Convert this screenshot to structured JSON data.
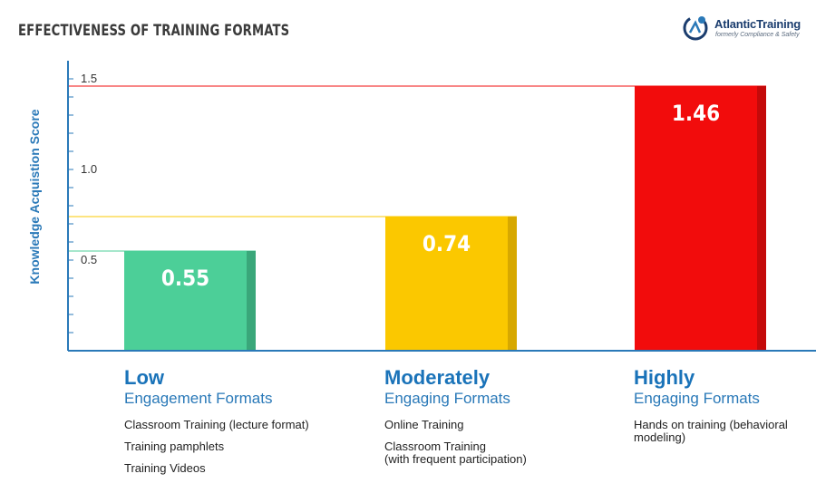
{
  "chart_data": {
    "type": "bar",
    "title": "EFFECTIVENESS OF TRAINING FORMATS",
    "ylabel": "Knowledge Acquistion Score",
    "ylim": [
      0,
      1.5
    ],
    "yticks": [
      "1.5",
      "1.0",
      "0.5"
    ],
    "ytick_values": [
      1.5,
      1.0,
      0.5
    ],
    "categories": [
      "Low",
      "Moderately",
      "Highly"
    ],
    "values": [
      0.55,
      0.74,
      1.46
    ],
    "value_labels": [
      "0.55",
      "0.74",
      "1.46"
    ],
    "colors": [
      "#4ccf98",
      "#fbc800",
      "#f20c0c"
    ],
    "shade_colors": [
      "#3aa77a",
      "#d7a800",
      "#c40a0a"
    ],
    "grid": false,
    "reference_lines": true
  },
  "categories_text": [
    {
      "title": "Low",
      "subtitle": "Engagement Formats",
      "items": [
        "Classroom Training (lecture format)",
        "Training pamphlets",
        "Training Videos"
      ]
    },
    {
      "title": "Moderately",
      "subtitle": "Engaging Formats",
      "items": [
        "Online Training",
        "Classroom Training\n(with frequent participation)"
      ]
    },
    {
      "title": "Highly",
      "subtitle": "Engaging Formats",
      "items": [
        "Hands on training (behavioral\nmodeling)"
      ]
    }
  ],
  "logo": {
    "name": "AtlanticTraining",
    "tagline": "formerly Compliance & Safety"
  }
}
